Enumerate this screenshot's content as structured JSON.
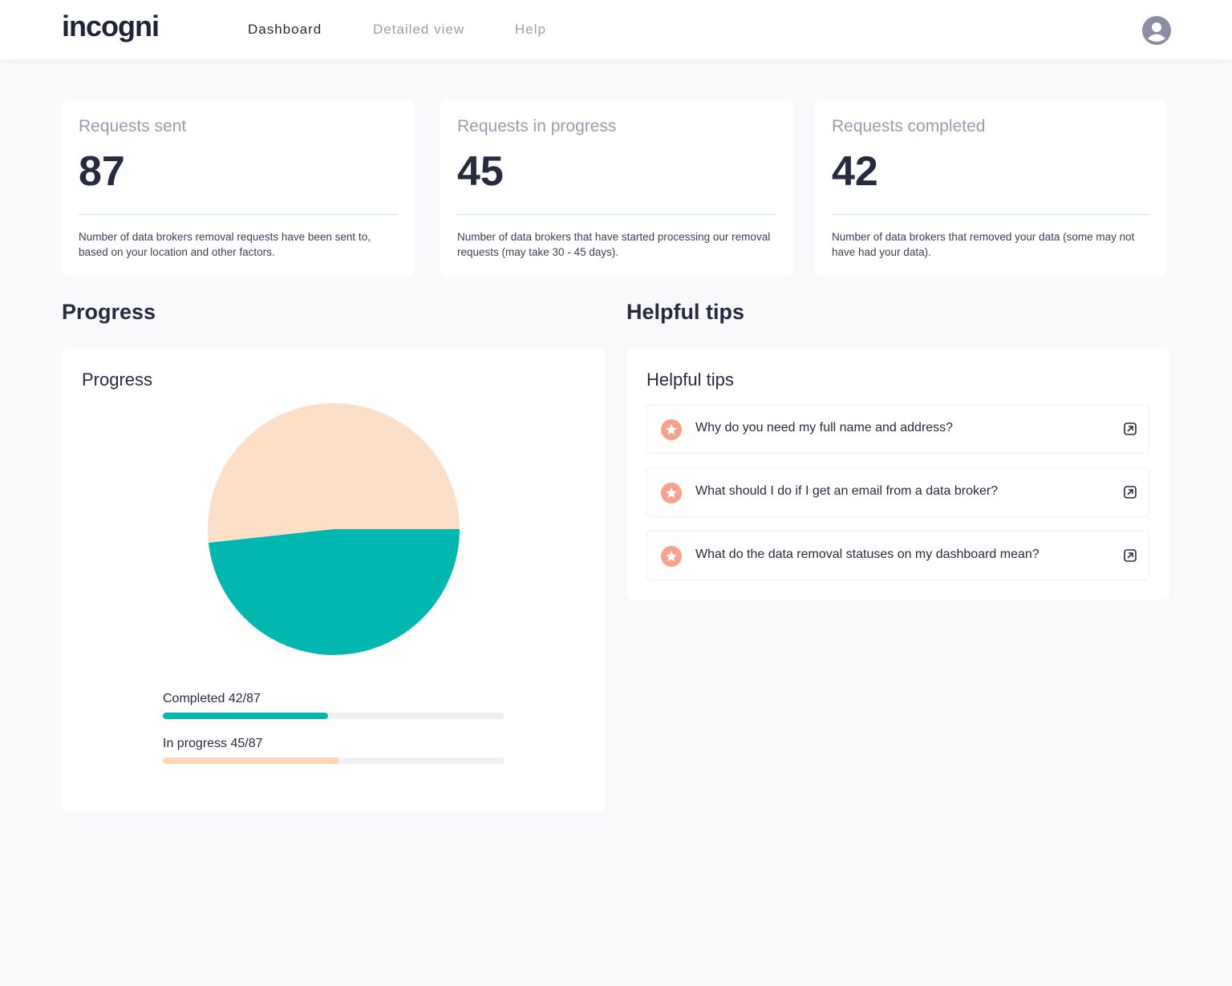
{
  "nav": {
    "logo": "incogni",
    "links": [
      "Dashboard",
      "Detailed view",
      "Help"
    ]
  },
  "stats": [
    {
      "label": "Requests sent",
      "value": 87,
      "description": "Number of data brokers removal requests have been sent to, based on your location and other factors."
    },
    {
      "label": "Requests in progress",
      "value": 45,
      "description": "Number of data brokers that have started processing our removal requests (may take 30 - 45 days)."
    },
    {
      "label": "Requests completed",
      "value": 42,
      "description": "Number of data brokers that removed your data (some may not have had your data)."
    }
  ],
  "progress": {
    "section_title": "Progress",
    "card_title": "Progress",
    "pie": {
      "type": "pie",
      "values": [
        42,
        45
      ],
      "colors": [
        "#00b8b0",
        "#fddec6"
      ]
    },
    "bars": [
      {
        "label": "Completed 42/87",
        "value": 42,
        "total": 87,
        "color": "#00b8b0"
      },
      {
        "label": "In progress 45/87",
        "value": 45,
        "total": 87,
        "color": "#fdd4b4"
      }
    ]
  },
  "tips": {
    "section_title": "Helpful tips",
    "card_title": "Helpful tips",
    "items": [
      "Why do you need my full name and address?",
      "What should I do if I get an email from a data broker?",
      "What do the data removal statuses on my dashboard mean?"
    ]
  }
}
